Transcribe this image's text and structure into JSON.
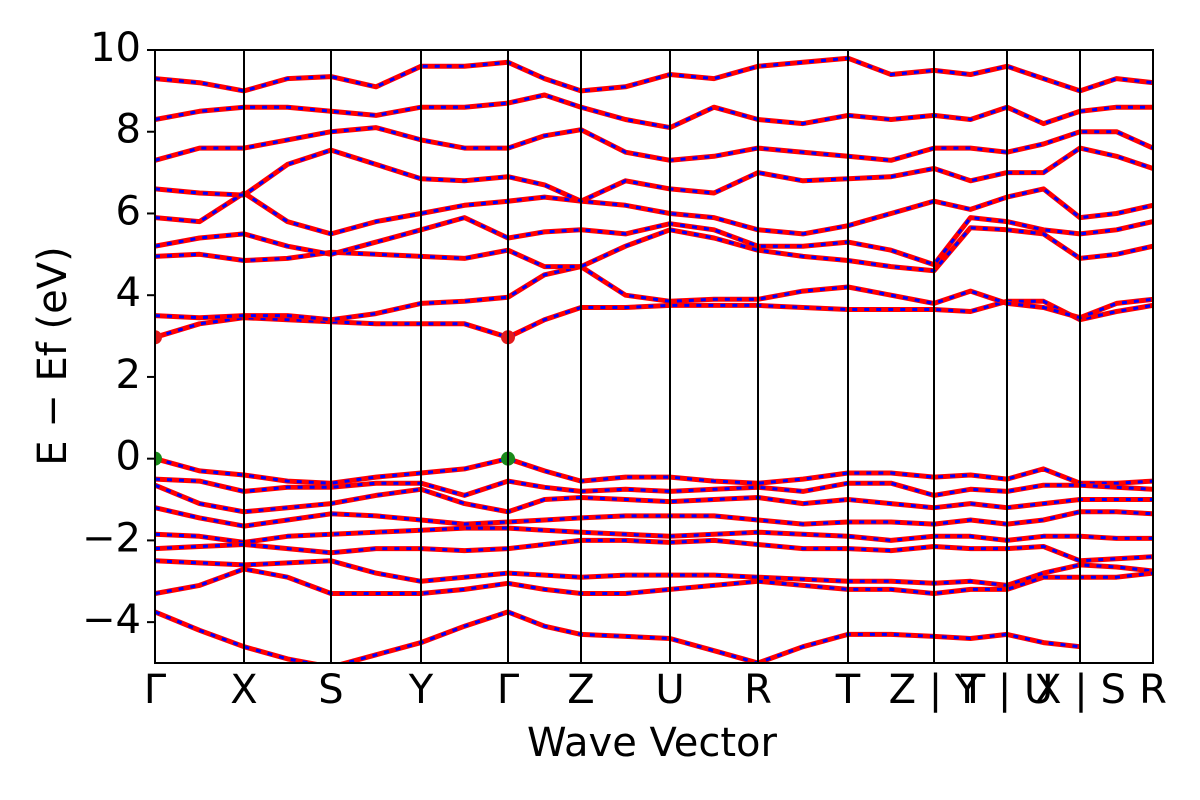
{
  "chart_data": {
    "type": "line",
    "xlabel": "Wave Vector",
    "ylabel": "E − Ef (eV)",
    "xlim": [
      0,
      9.98
    ],
    "ylim": [
      -5,
      10
    ],
    "yticks": [
      {
        "value": -4,
        "label": "−4"
      },
      {
        "value": -2,
        "label": "−2"
      },
      0,
      2,
      4,
      6,
      8,
      10
    ],
    "xticks": [
      {
        "value": 0,
        "label": "Γ"
      },
      {
        "value": 0.89,
        "label": "X"
      },
      {
        "value": 1.76,
        "label": "S"
      },
      {
        "value": 2.66,
        "label": "Y"
      },
      {
        "value": 3.53,
        "label": "Γ"
      },
      {
        "value": 4.26,
        "label": "Z"
      },
      {
        "value": 5.15,
        "label": "U"
      },
      {
        "value": 6.03,
        "label": "R"
      },
      {
        "value": 6.93,
        "label": "T"
      },
      {
        "value": 7.79,
        "label": "Z | Y"
      },
      {
        "value": 8.52,
        "label": "T | U"
      },
      {
        "value": 9.25,
        "label": "X | S"
      },
      {
        "value": 9.98,
        "label": "R"
      }
    ],
    "x": [
      0,
      0.445,
      0.89,
      1.325,
      1.76,
      2.21,
      2.66,
      3.095,
      3.53,
      3.895,
      4.26,
      4.705,
      5.15,
      5.59,
      6.03,
      6.48,
      6.93,
      7.36,
      7.79,
      8.155,
      8.52,
      8.885,
      9.25,
      9.615,
      9.98
    ],
    "color": "#ff0000",
    "dash_color": "#0000ff",
    "series": [
      {
        "values": [
          2.97,
          3.3,
          3.45,
          3.4,
          3.35,
          3.3,
          3.3,
          3.3,
          2.97,
          3.4,
          3.7,
          3.7,
          3.75,
          3.75,
          3.75,
          3.7,
          3.65,
          3.65,
          3.65,
          3.6,
          3.85,
          3.85,
          3.4,
          3.6,
          3.75
        ]
      },
      {
        "values": [
          3.5,
          3.45,
          3.5,
          3.5,
          3.4,
          3.55,
          3.8,
          3.85,
          3.95,
          4.5,
          4.7,
          4.0,
          3.85,
          3.9,
          3.9,
          4.1,
          4.2,
          4.0,
          3.8,
          4.1,
          3.8,
          3.7,
          3.45,
          3.8,
          3.9
        ]
      },
      {
        "values": [
          4.95,
          5.0,
          4.85,
          4.9,
          5.05,
          5.0,
          4.95,
          4.9,
          5.1,
          4.7,
          4.7,
          5.2,
          5.6,
          5.4,
          5.1,
          4.95,
          4.85,
          4.7,
          4.6,
          5.65,
          5.6,
          5.5,
          4.9,
          5.0,
          5.2
        ]
      },
      {
        "values": [
          5.2,
          5.4,
          5.5,
          5.2,
          5.0,
          5.3,
          5.6,
          5.9,
          5.4,
          5.55,
          5.6,
          5.5,
          5.75,
          5.6,
          5.2,
          5.2,
          5.3,
          5.1,
          4.75,
          5.9,
          5.8,
          5.6,
          5.5,
          5.6,
          5.8
        ]
      },
      {
        "values": [
          5.9,
          5.8,
          6.5,
          5.8,
          5.5,
          5.8,
          6.0,
          6.2,
          6.3,
          6.4,
          6.3,
          6.2,
          6.0,
          5.9,
          5.6,
          5.5,
          5.7,
          6.0,
          6.3,
          6.1,
          6.4,
          6.6,
          5.9,
          6.0,
          6.2
        ]
      },
      {
        "values": [
          6.6,
          6.5,
          6.45,
          7.2,
          7.55,
          7.2,
          6.85,
          6.8,
          6.9,
          6.7,
          6.3,
          6.8,
          6.6,
          6.5,
          7.0,
          6.8,
          6.85,
          6.9,
          7.1,
          6.8,
          7.0,
          7.0,
          7.6,
          7.4,
          7.1
        ]
      },
      {
        "values": [
          7.3,
          7.6,
          7.6,
          7.8,
          8.0,
          8.1,
          7.8,
          7.6,
          7.6,
          7.9,
          8.05,
          7.5,
          7.3,
          7.4,
          7.6,
          7.5,
          7.4,
          7.3,
          7.6,
          7.6,
          7.5,
          7.7,
          8.0,
          8.0,
          7.6
        ]
      },
      {
        "values": [
          8.3,
          8.5,
          8.6,
          8.6,
          8.5,
          8.4,
          8.6,
          8.6,
          8.7,
          8.9,
          8.6,
          8.3,
          8.1,
          8.6,
          8.3,
          8.2,
          8.4,
          8.3,
          8.4,
          8.3,
          8.6,
          8.2,
          8.5,
          8.6,
          8.6
        ]
      },
      {
        "values": [
          9.3,
          9.2,
          9.0,
          9.3,
          9.35,
          9.1,
          9.6,
          9.6,
          9.7,
          9.3,
          9.0,
          9.1,
          9.4,
          9.3,
          9.6,
          9.7,
          9.8,
          9.4,
          9.5,
          9.4,
          9.6,
          9.3,
          9.0,
          9.3,
          9.2
        ]
      },
      {
        "values": [
          0,
          -0.3,
          -0.4,
          -0.55,
          -0.6,
          -0.45,
          -0.35,
          -0.25,
          0,
          -0.3,
          -0.55,
          -0.45,
          -0.45,
          -0.55,
          -0.6,
          -0.5,
          -0.35,
          -0.35,
          -0.45,
          -0.4,
          -0.5,
          -0.25,
          -0.6,
          -0.6,
          -0.55
        ]
      },
      {
        "values": [
          -0.5,
          -0.55,
          -0.8,
          -0.7,
          -0.7,
          -0.6,
          -0.6,
          -0.9,
          -0.55,
          -0.7,
          -0.8,
          -0.75,
          -0.8,
          -0.75,
          -0.7,
          -0.8,
          -0.6,
          -0.6,
          -0.9,
          -0.75,
          -0.8,
          -0.65,
          -0.65,
          -0.7,
          -0.75
        ]
      },
      {
        "values": [
          -0.65,
          -1.1,
          -1.3,
          -1.2,
          -1.1,
          -0.9,
          -0.75,
          -1.1,
          -1.3,
          -1.0,
          -0.95,
          -1.0,
          -1.05,
          -1.0,
          -0.95,
          -1.1,
          -1.0,
          -1.1,
          -1.2,
          -1.1,
          -1.2,
          -1.1,
          -1.0,
          -1.0,
          -1.0
        ]
      },
      {
        "values": [
          -1.2,
          -1.45,
          -1.65,
          -1.5,
          -1.35,
          -1.4,
          -1.5,
          -1.6,
          -1.55,
          -1.5,
          -1.45,
          -1.4,
          -1.4,
          -1.4,
          -1.5,
          -1.6,
          -1.55,
          -1.55,
          -1.6,
          -1.5,
          -1.6,
          -1.5,
          -1.3,
          -1.3,
          -1.35
        ]
      },
      {
        "values": [
          -1.85,
          -1.9,
          -2.05,
          -1.9,
          -1.85,
          -1.8,
          -1.75,
          -1.7,
          -1.7,
          -1.75,
          -1.8,
          -1.85,
          -1.9,
          -1.85,
          -1.8,
          -1.85,
          -1.9,
          -2.0,
          -1.9,
          -1.9,
          -2.0,
          -1.9,
          -1.9,
          -1.95,
          -1.95
        ]
      },
      {
        "values": [
          -2.2,
          -2.15,
          -2.1,
          -2.2,
          -2.3,
          -2.2,
          -2.2,
          -2.25,
          -2.2,
          -2.1,
          -2.0,
          -2.0,
          -2.05,
          -2.0,
          -2.1,
          -2.2,
          -2.2,
          -2.25,
          -2.15,
          -2.2,
          -2.2,
          -2.15,
          -2.5,
          -2.45,
          -2.4
        ]
      },
      {
        "values": [
          -2.5,
          -2.55,
          -2.6,
          -2.55,
          -2.5,
          -2.8,
          -3.0,
          -2.9,
          -2.8,
          -2.85,
          -2.9,
          -2.85,
          -2.85,
          -2.85,
          -2.9,
          -2.95,
          -3.0,
          -3.0,
          -3.05,
          -3.0,
          -3.1,
          -2.8,
          -2.6,
          -2.65,
          -2.75
        ]
      },
      {
        "values": [
          -3.3,
          -3.1,
          -2.7,
          -2.9,
          -3.3,
          -3.3,
          -3.3,
          -3.2,
          -3.05,
          -3.2,
          -3.3,
          -3.3,
          -3.2,
          -3.1,
          -3.0,
          -3.1,
          -3.2,
          -3.2,
          -3.3,
          -3.2,
          -3.2,
          -2.9,
          -2.9,
          -2.9,
          -2.8
        ]
      },
      {
        "values": [
          -3.75,
          -4.2,
          -4.6,
          -4.9,
          -5.1,
          -4.8,
          -4.5,
          -4.1,
          -3.75,
          -4.1,
          -4.3,
          -4.35,
          -4.4,
          -4.7,
          -5.0,
          -4.6,
          -4.3,
          -4.3,
          -4.35,
          -4.4,
          -4.3,
          -4.5,
          -4.6,
          null,
          null
        ]
      }
    ],
    "markers": [
      {
        "x": 0,
        "y": 2.97,
        "color": "#e31a1c"
      },
      {
        "x": 3.53,
        "y": 2.97,
        "color": "#e31a1c"
      },
      {
        "x": 0,
        "y": 0,
        "color": "#1a8a1a"
      },
      {
        "x": 3.53,
        "y": 0,
        "color": "#1a8a1a"
      }
    ]
  }
}
